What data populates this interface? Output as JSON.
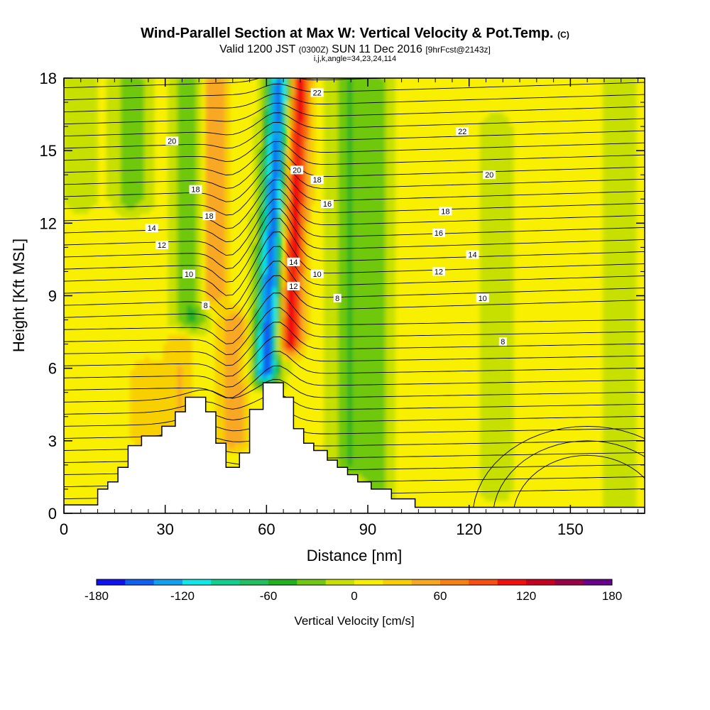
{
  "header": {
    "title_main": "Wind-Parallel Section at Max W: Vertical Velocity & Pot.Temp.",
    "title_tag": "(C)",
    "valid_a": "Valid 1200 JST",
    "valid_b": "(0300Z)",
    "valid_c": "SUN 11 Dec 2016",
    "valid_d": "[9hrFcst@2143z]",
    "indices": "i,j,k,angle=34,23,24,114"
  },
  "chart_data": {
    "type": "heatmap",
    "xlabel": "Distance [nm]",
    "ylabel": "Height [Kft MSL]",
    "xlim": [
      0,
      172
    ],
    "ylim": [
      0,
      18
    ],
    "x_ticks": [
      "0",
      "30",
      "60",
      "90",
      "120",
      "150"
    ],
    "y_ticks": [
      "0",
      "3",
      "6",
      "9",
      "12",
      "15",
      "18"
    ],
    "colorbar": {
      "label": "Vertical Velocity [cm/s]",
      "ticks": [
        "-180",
        "-120",
        "-60",
        "0",
        "60",
        "120",
        "180"
      ],
      "levels": [
        -180,
        -160,
        -140,
        -120,
        -100,
        -80,
        -60,
        -40,
        -20,
        0,
        20,
        40,
        60,
        80,
        100,
        120,
        140,
        160,
        180
      ],
      "colors": [
        "#1010f0",
        "#1060f0",
        "#10a0f0",
        "#10e8e8",
        "#10d090",
        "#20c060",
        "#20b020",
        "#70c810",
        "#c8e000",
        "#f8f000",
        "#f8d000",
        "#f8a820",
        "#f88010",
        "#f85010",
        "#f01010",
        "#c80020",
        "#980048",
        "#680088"
      ]
    },
    "velocity_features": [
      {
        "x": 62,
        "z_bottom": 5.8,
        "z_top": 18,
        "w": -160
      },
      {
        "x": 68,
        "z_bottom": 7,
        "z_top": 18,
        "w": 120
      },
      {
        "x": 44,
        "z_bottom": 9,
        "z_top": 18,
        "w": 60
      },
      {
        "x": 38,
        "z_bottom": 8,
        "z_top": 18,
        "w": -50
      },
      {
        "x": 84,
        "z_bottom": 2,
        "z_top": 18,
        "w": -45
      },
      {
        "x": 50,
        "z_bottom": 3,
        "z_top": 8,
        "w": 50
      },
      {
        "x": 34,
        "z_bottom": 3,
        "z_top": 7,
        "w": 35
      },
      {
        "x": 24,
        "z_bottom": 3,
        "z_top": 6,
        "w": 30
      },
      {
        "x": 92,
        "z_bottom": 0,
        "z_top": 18,
        "w": -35
      },
      {
        "x": 113,
        "z_bottom": 0,
        "z_top": 10,
        "w": 10
      },
      {
        "x": 128,
        "z_bottom": 1,
        "z_top": 16,
        "w": -15
      },
      {
        "x": 140,
        "z_bottom": 5,
        "z_top": 18,
        "w": 12
      },
      {
        "x": 165,
        "z_bottom": 0,
        "z_top": 18,
        "w": -15
      },
      {
        "x": 20,
        "z_bottom": 13,
        "z_top": 18,
        "w": -45
      },
      {
        "x": 5,
        "z_bottom": 13,
        "z_top": 18,
        "w": -15
      }
    ],
    "theta_labels": [
      {
        "text": "22",
        "x": 75,
        "z": 17.4
      },
      {
        "text": "22",
        "x": 118,
        "z": 15.8
      },
      {
        "text": "20",
        "x": 32,
        "z": 15.4
      },
      {
        "text": "20",
        "x": 69,
        "z": 14.2
      },
      {
        "text": "20",
        "x": 126,
        "z": 14.0
      },
      {
        "text": "18",
        "x": 39,
        "z": 13.4
      },
      {
        "text": "18",
        "x": 75,
        "z": 13.8
      },
      {
        "text": "18",
        "x": 113,
        "z": 12.5
      },
      {
        "text": "18",
        "x": 43,
        "z": 12.3
      },
      {
        "text": "16",
        "x": 78,
        "z": 12.8
      },
      {
        "text": "16",
        "x": 111,
        "z": 11.6
      },
      {
        "text": "14",
        "x": 26,
        "z": 11.8
      },
      {
        "text": "14",
        "x": 68,
        "z": 10.4
      },
      {
        "text": "14",
        "x": 121,
        "z": 10.7
      },
      {
        "text": "12",
        "x": 29,
        "z": 11.1
      },
      {
        "text": "12",
        "x": 68,
        "z": 9.4
      },
      {
        "text": "12",
        "x": 111,
        "z": 10.0
      },
      {
        "text": "10",
        "x": 37,
        "z": 9.9
      },
      {
        "text": "10",
        "x": 75,
        "z": 9.9
      },
      {
        "text": "10",
        "x": 124,
        "z": 8.9
      },
      {
        "text": "8",
        "x": 42,
        "z": 8.6
      },
      {
        "text": "8",
        "x": 81,
        "z": 8.9
      },
      {
        "text": "8",
        "x": 130,
        "z": 7.1
      }
    ],
    "terrain": [
      {
        "x": 0,
        "z": 0.35
      },
      {
        "x": 10,
        "z": 0.35
      },
      {
        "x": 10,
        "z": 1.0
      },
      {
        "x": 13,
        "z": 1.0
      },
      {
        "x": 13,
        "z": 1.3
      },
      {
        "x": 16,
        "z": 1.3
      },
      {
        "x": 16,
        "z": 1.9
      },
      {
        "x": 19,
        "z": 1.9
      },
      {
        "x": 19,
        "z": 2.8
      },
      {
        "x": 23,
        "z": 2.8
      },
      {
        "x": 23,
        "z": 3.2
      },
      {
        "x": 29,
        "z": 3.2
      },
      {
        "x": 29,
        "z": 3.6
      },
      {
        "x": 33,
        "z": 3.6
      },
      {
        "x": 33,
        "z": 4.2
      },
      {
        "x": 36,
        "z": 4.2
      },
      {
        "x": 36,
        "z": 4.8
      },
      {
        "x": 42,
        "z": 4.8
      },
      {
        "x": 42,
        "z": 4.2
      },
      {
        "x": 45,
        "z": 4.2
      },
      {
        "x": 45,
        "z": 2.9
      },
      {
        "x": 48,
        "z": 2.9
      },
      {
        "x": 48,
        "z": 1.9
      },
      {
        "x": 52,
        "z": 1.9
      },
      {
        "x": 52,
        "z": 2.5
      },
      {
        "x": 55,
        "z": 2.5
      },
      {
        "x": 55,
        "z": 4.3
      },
      {
        "x": 59,
        "z": 4.3
      },
      {
        "x": 59,
        "z": 5.4
      },
      {
        "x": 65,
        "z": 5.4
      },
      {
        "x": 65,
        "z": 4.8
      },
      {
        "x": 68,
        "z": 4.8
      },
      {
        "x": 68,
        "z": 3.5
      },
      {
        "x": 71,
        "z": 3.5
      },
      {
        "x": 71,
        "z": 2.9
      },
      {
        "x": 74,
        "z": 2.9
      },
      {
        "x": 74,
        "z": 2.6
      },
      {
        "x": 78,
        "z": 2.6
      },
      {
        "x": 78,
        "z": 2.2
      },
      {
        "x": 81,
        "z": 2.2
      },
      {
        "x": 81,
        "z": 1.9
      },
      {
        "x": 84,
        "z": 1.9
      },
      {
        "x": 84,
        "z": 1.6
      },
      {
        "x": 87,
        "z": 1.6
      },
      {
        "x": 87,
        "z": 1.3
      },
      {
        "x": 91,
        "z": 1.3
      },
      {
        "x": 91,
        "z": 1.0
      },
      {
        "x": 97,
        "z": 1.0
      },
      {
        "x": 97,
        "z": 0.6
      },
      {
        "x": 104,
        "z": 0.6
      },
      {
        "x": 104,
        "z": 0.25
      },
      {
        "x": 172,
        "z": 0.25
      }
    ]
  }
}
